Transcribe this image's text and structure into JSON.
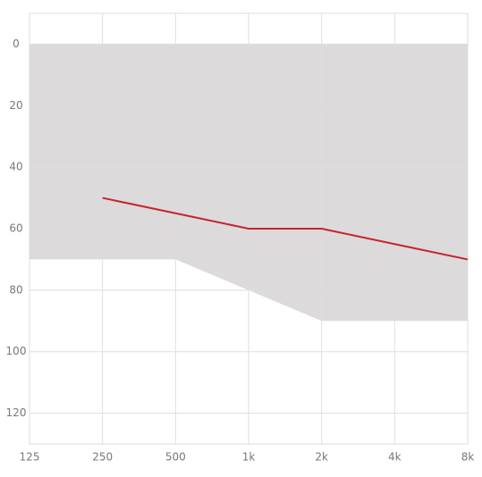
{
  "chart_data": {
    "type": "line",
    "categories": [
      "125",
      "250",
      "500",
      "1k",
      "2k",
      "4k",
      "8k"
    ],
    "series": [
      {
        "color": "#c8232c",
        "values": [
          null,
          50,
          55,
          60,
          60,
          65,
          70
        ]
      }
    ],
    "band": {
      "color": "#dcdadb",
      "low": [
        0,
        0,
        0,
        0,
        0,
        0,
        0
      ],
      "high": [
        70,
        70,
        70,
        80,
        90,
        90,
        90
      ]
    },
    "ylim": [
      -10,
      130
    ],
    "y_inverted": true,
    "yticks": [
      0,
      20,
      40,
      60,
      80,
      100,
      120
    ],
    "grid": true
  }
}
